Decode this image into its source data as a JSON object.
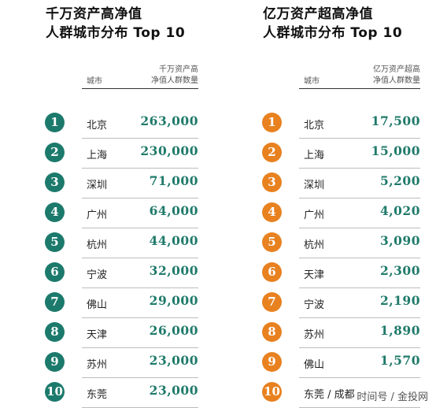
{
  "left": {
    "title_line1": "千万资产高净值",
    "title_line2": "人群城市分布 Top 10",
    "header_city": "城市",
    "header_value_line1": "千万资产高",
    "header_value_line2": "净值人群数量",
    "badge_color": "#1c7a6c",
    "rows": [
      {
        "rank": "1",
        "city": "北京",
        "value": "263,000"
      },
      {
        "rank": "2",
        "city": "上海",
        "value": "230,000"
      },
      {
        "rank": "3",
        "city": "深圳",
        "value": "71,000"
      },
      {
        "rank": "4",
        "city": "广州",
        "value": "64,000"
      },
      {
        "rank": "5",
        "city": "杭州",
        "value": "44,000"
      },
      {
        "rank": "6",
        "city": "宁波",
        "value": "32,000"
      },
      {
        "rank": "7",
        "city": "佛山",
        "value": "29,000"
      },
      {
        "rank": "8",
        "city": "天津",
        "value": "26,000"
      },
      {
        "rank": "9",
        "city": "苏州",
        "value": "23,000"
      },
      {
        "rank": "10",
        "city": "东莞",
        "value": "23,000"
      }
    ]
  },
  "right": {
    "title_line1": "亿万资产超高净值",
    "title_line2": "人群城市分布 Top 10",
    "header_city": "城市",
    "header_value_line1": "亿万资产超高",
    "header_value_line2": "净值人群数量",
    "badge_color": "#e8811f",
    "rows": [
      {
        "rank": "1",
        "city": "北京",
        "value": "17,500"
      },
      {
        "rank": "2",
        "city": "上海",
        "value": "15,000"
      },
      {
        "rank": "3",
        "city": "深圳",
        "value": "5,200"
      },
      {
        "rank": "4",
        "city": "广州",
        "value": "4,020"
      },
      {
        "rank": "5",
        "city": "杭州",
        "value": "3,090"
      },
      {
        "rank": "6",
        "city": "天津",
        "value": "2,300"
      },
      {
        "rank": "7",
        "city": "宁波",
        "value": "2,190"
      },
      {
        "rank": "8",
        "city": "苏州",
        "value": "1,890"
      },
      {
        "rank": "9",
        "city": "佛山",
        "value": "1,570"
      },
      {
        "rank": "10",
        "city": "东莞 / 成都",
        "value": ""
      }
    ]
  },
  "watermark": "时间号 / 金投网",
  "chart_data": [
    {
      "type": "table",
      "title": "千万资产高净值人群城市分布 Top 10",
      "columns": [
        "城市",
        "千万资产高净值人群数量"
      ],
      "categories": [
        "北京",
        "上海",
        "深圳",
        "广州",
        "杭州",
        "宁波",
        "佛山",
        "天津",
        "苏州",
        "东莞"
      ],
      "values": [
        263000,
        230000,
        71000,
        64000,
        44000,
        32000,
        29000,
        26000,
        23000,
        23000
      ]
    },
    {
      "type": "table",
      "title": "亿万资产超高净值人群城市分布 Top 10",
      "columns": [
        "城市",
        "亿万资产超高净值人群数量"
      ],
      "categories": [
        "北京",
        "上海",
        "深圳",
        "广州",
        "杭州",
        "天津",
        "宁波",
        "苏州",
        "佛山",
        "东莞 / 成都"
      ],
      "values": [
        17500,
        15000,
        5200,
        4020,
        3090,
        2300,
        2190,
        1890,
        1570,
        null
      ]
    }
  ]
}
